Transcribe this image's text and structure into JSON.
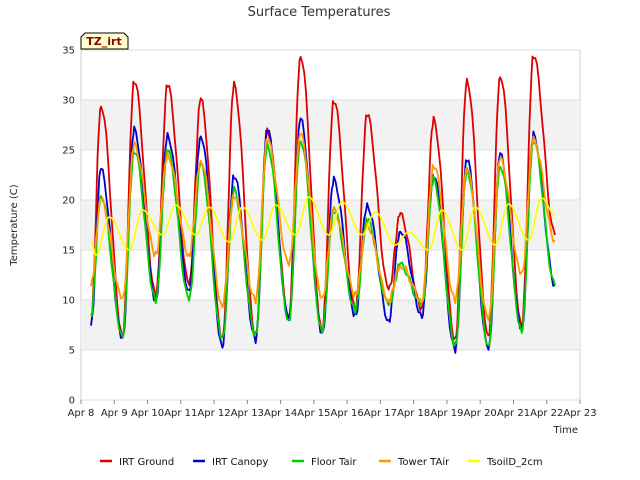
{
  "chart_data": {
    "type": "line",
    "title": "Surface Temperatures",
    "badge": "TZ_irt",
    "xlabel": "Time",
    "ylabel": "Temperature (C)",
    "ylim": [
      0,
      35
    ],
    "yticks": [
      0,
      5,
      10,
      15,
      20,
      25,
      30,
      35
    ],
    "xticks": [
      "Apr 8",
      "Apr 9",
      "Apr 10",
      "Apr 11",
      "Apr 12",
      "Apr 13",
      "Apr 14",
      "Apr 15",
      "Apr 16",
      "Apr 17",
      "Apr 18",
      "Apr 19",
      "Apr 20",
      "Apr 21",
      "Apr 22",
      "Apr 23"
    ],
    "grid": true,
    "legend_position": "bottom",
    "series": [
      {
        "name": "IRT Ground",
        "color": "#dd0000",
        "daily_min": [
          6.5,
          6.5,
          10.5,
          11.5,
          6.0,
          6.5,
          8.5,
          7.0,
          9.0,
          11.0,
          9.0,
          6.0,
          6.5,
          7.5
        ],
        "daily_max": [
          29.5,
          32.0,
          31.5,
          30.0,
          31.5,
          27.0,
          34.5,
          30.0,
          28.5,
          18.5,
          28.0,
          32.0,
          32.5,
          34.5
        ],
        "end_value": 16.5
      },
      {
        "name": "IRT Canopy",
        "color": "#0000cc",
        "daily_min": [
          6.0,
          6.0,
          10.0,
          11.0,
          5.5,
          6.0,
          8.0,
          6.5,
          8.5,
          8.0,
          8.5,
          5.0,
          5.0,
          7.0
        ],
        "daily_max": [
          23.0,
          27.0,
          26.5,
          26.5,
          22.5,
          27.0,
          28.0,
          22.0,
          19.5,
          17.0,
          22.5,
          24.0,
          24.5,
          26.5
        ],
        "end_value": 11.5
      },
      {
        "name": "Floor Tair",
        "color": "#00cc00",
        "daily_min": [
          7.0,
          6.5,
          10.0,
          10.0,
          6.0,
          6.5,
          8.0,
          7.0,
          9.0,
          9.5,
          9.5,
          5.5,
          5.5,
          7.0
        ],
        "daily_max": [
          20.5,
          25.0,
          25.0,
          23.5,
          21.0,
          25.5,
          26.0,
          19.0,
          18.0,
          13.5,
          22.0,
          23.0,
          23.5,
          26.0
        ],
        "end_value": 11.5
      },
      {
        "name": "Tower TAir",
        "color": "#ff9900",
        "daily_min": [
          10.0,
          10.0,
          14.5,
          14.5,
          9.5,
          10.0,
          13.5,
          10.0,
          10.5,
          10.0,
          10.0,
          10.0,
          8.0,
          12.5
        ],
        "daily_max": [
          20.0,
          25.5,
          24.5,
          24.0,
          20.5,
          26.0,
          26.5,
          19.0,
          17.5,
          13.5,
          23.5,
          23.0,
          24.0,
          26.0
        ],
        "end_value": 16.0
      },
      {
        "name": "TsoilD_2cm",
        "color": "#ffff00",
        "daily_min": [
          14.5,
          15.0,
          16.5,
          16.5,
          15.8,
          16.0,
          16.5,
          16.5,
          16.5,
          15.5,
          15.0,
          15.0,
          15.5,
          16.0
        ],
        "daily_max": [
          18.3,
          19.0,
          19.5,
          19.3,
          19.3,
          19.5,
          20.3,
          19.8,
          18.8,
          16.8,
          19.0,
          19.3,
          19.6,
          20.2
        ],
        "end_value": 18.5
      }
    ]
  }
}
